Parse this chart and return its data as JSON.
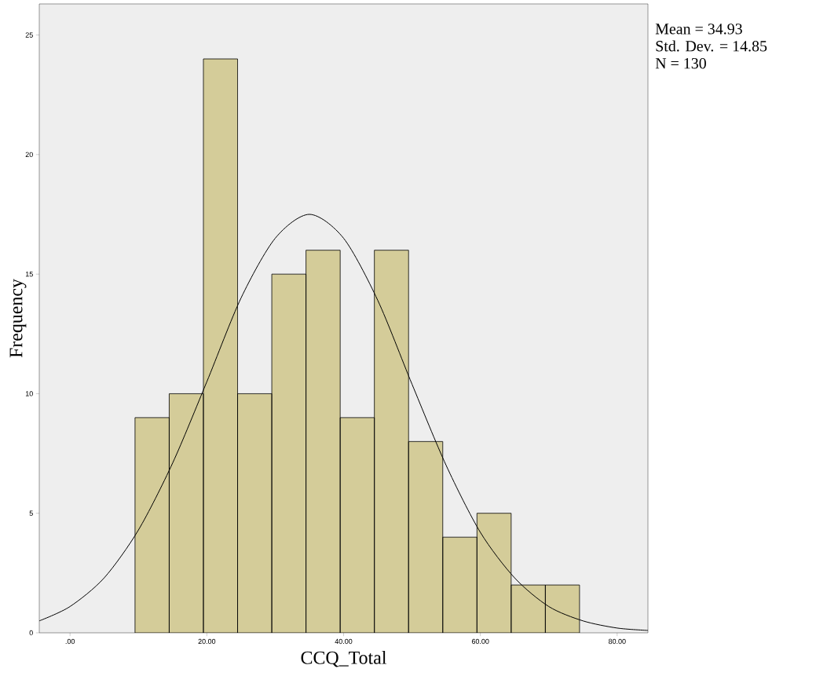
{
  "chart_data": {
    "type": "histogram",
    "xlabel": "CCQ_Total",
    "ylabel": "Frequency",
    "bins": [
      9.5,
      14.5,
      19.5,
      24.5,
      29.5,
      34.5,
      39.5,
      44.5,
      49.5,
      54.5,
      59.5,
      64.5,
      69.5,
      74.5
    ],
    "values": [
      9,
      10,
      24,
      10,
      15,
      16,
      9,
      16,
      8,
      4,
      5,
      2,
      2
    ],
    "color": "#d4cc99",
    "series": [
      {
        "type": "line",
        "color": "#000000",
        "x": [
          -4.5,
          0,
          5,
          10,
          15,
          20,
          25,
          30,
          35,
          40,
          45,
          50,
          55,
          60,
          65,
          70,
          75,
          80,
          84.5
        ],
        "values": [
          0.5,
          1.1,
          2.3,
          4.3,
          7.1,
          10.5,
          14.0,
          16.5,
          17.5,
          16.5,
          13.9,
          10.4,
          7.0,
          4.2,
          2.3,
          1.1,
          0.5,
          0.2,
          0.1
        ]
      }
    ],
    "xlim": [
      -4.5,
      84.5
    ],
    "ylim": [
      0,
      26.3
    ],
    "xticks": [
      {
        "value": 0,
        "label": ".00"
      },
      {
        "value": 20,
        "label": "20.00"
      },
      {
        "value": 40,
        "label": "40.00"
      },
      {
        "value": 60,
        "label": "60.00"
      },
      {
        "value": 80,
        "label": "80.00"
      }
    ],
    "yticks": [
      0,
      5,
      10,
      15,
      20,
      25
    ],
    "annotations": [
      "Mean = 34.93",
      "Std. Dev. = 14.85",
      "N = 130"
    ]
  }
}
